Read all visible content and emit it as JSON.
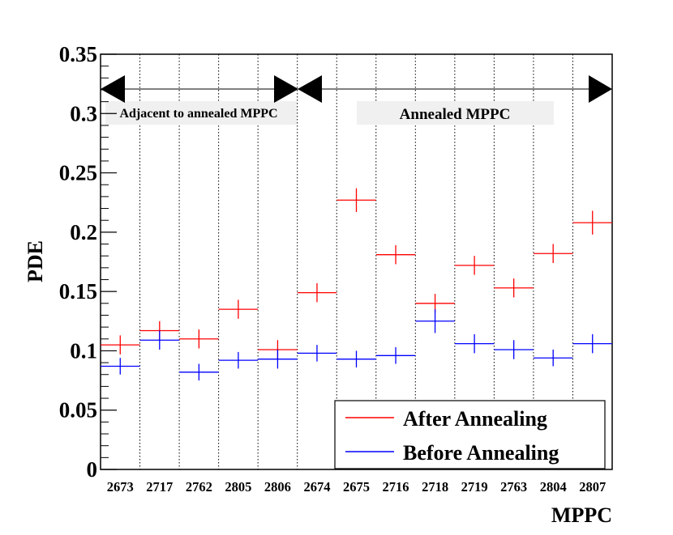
{
  "chart_data": {
    "type": "scatter",
    "title": "",
    "xlabel": "MPPC",
    "ylabel": "PDE",
    "ylim": [
      0,
      0.35
    ],
    "yticks": [
      "0",
      "0.05",
      "0.1",
      "0.15",
      "0.2",
      "0.25",
      "0.3",
      "0.35"
    ],
    "categories": [
      "2673",
      "2717",
      "2762",
      "2805",
      "2806",
      "2674",
      "2675",
      "2716",
      "2718",
      "2719",
      "2763",
      "2804",
      "2807"
    ],
    "series": [
      {
        "name": "After Annealing",
        "color": "#ff0000",
        "values": [
          0.105,
          0.117,
          0.11,
          0.135,
          0.101,
          0.149,
          0.227,
          0.181,
          0.14,
          0.172,
          0.153,
          0.182,
          0.208
        ],
        "errors": [
          0.008,
          0.008,
          0.008,
          0.008,
          0.008,
          0.008,
          0.01,
          0.008,
          0.008,
          0.008,
          0.008,
          0.008,
          0.01
        ]
      },
      {
        "name": "Before Annealing",
        "color": "#0000ff",
        "values": [
          0.087,
          0.109,
          0.082,
          0.092,
          0.093,
          0.098,
          0.093,
          0.096,
          0.125,
          0.106,
          0.101,
          0.094,
          0.106
        ],
        "errors": [
          0.007,
          0.008,
          0.007,
          0.007,
          0.008,
          0.007,
          0.007,
          0.007,
          0.01,
          0.008,
          0.008,
          0.007,
          0.008
        ]
      }
    ],
    "annotations": [
      {
        "text": "Adjacent to annealed MPPC",
        "from_category": 0,
        "to_category": 4
      },
      {
        "text": "Annealed MPPC",
        "from_category": 5,
        "to_category": 12
      }
    ],
    "legend_position": "bottom-right",
    "grid": "vertical-dotted"
  }
}
